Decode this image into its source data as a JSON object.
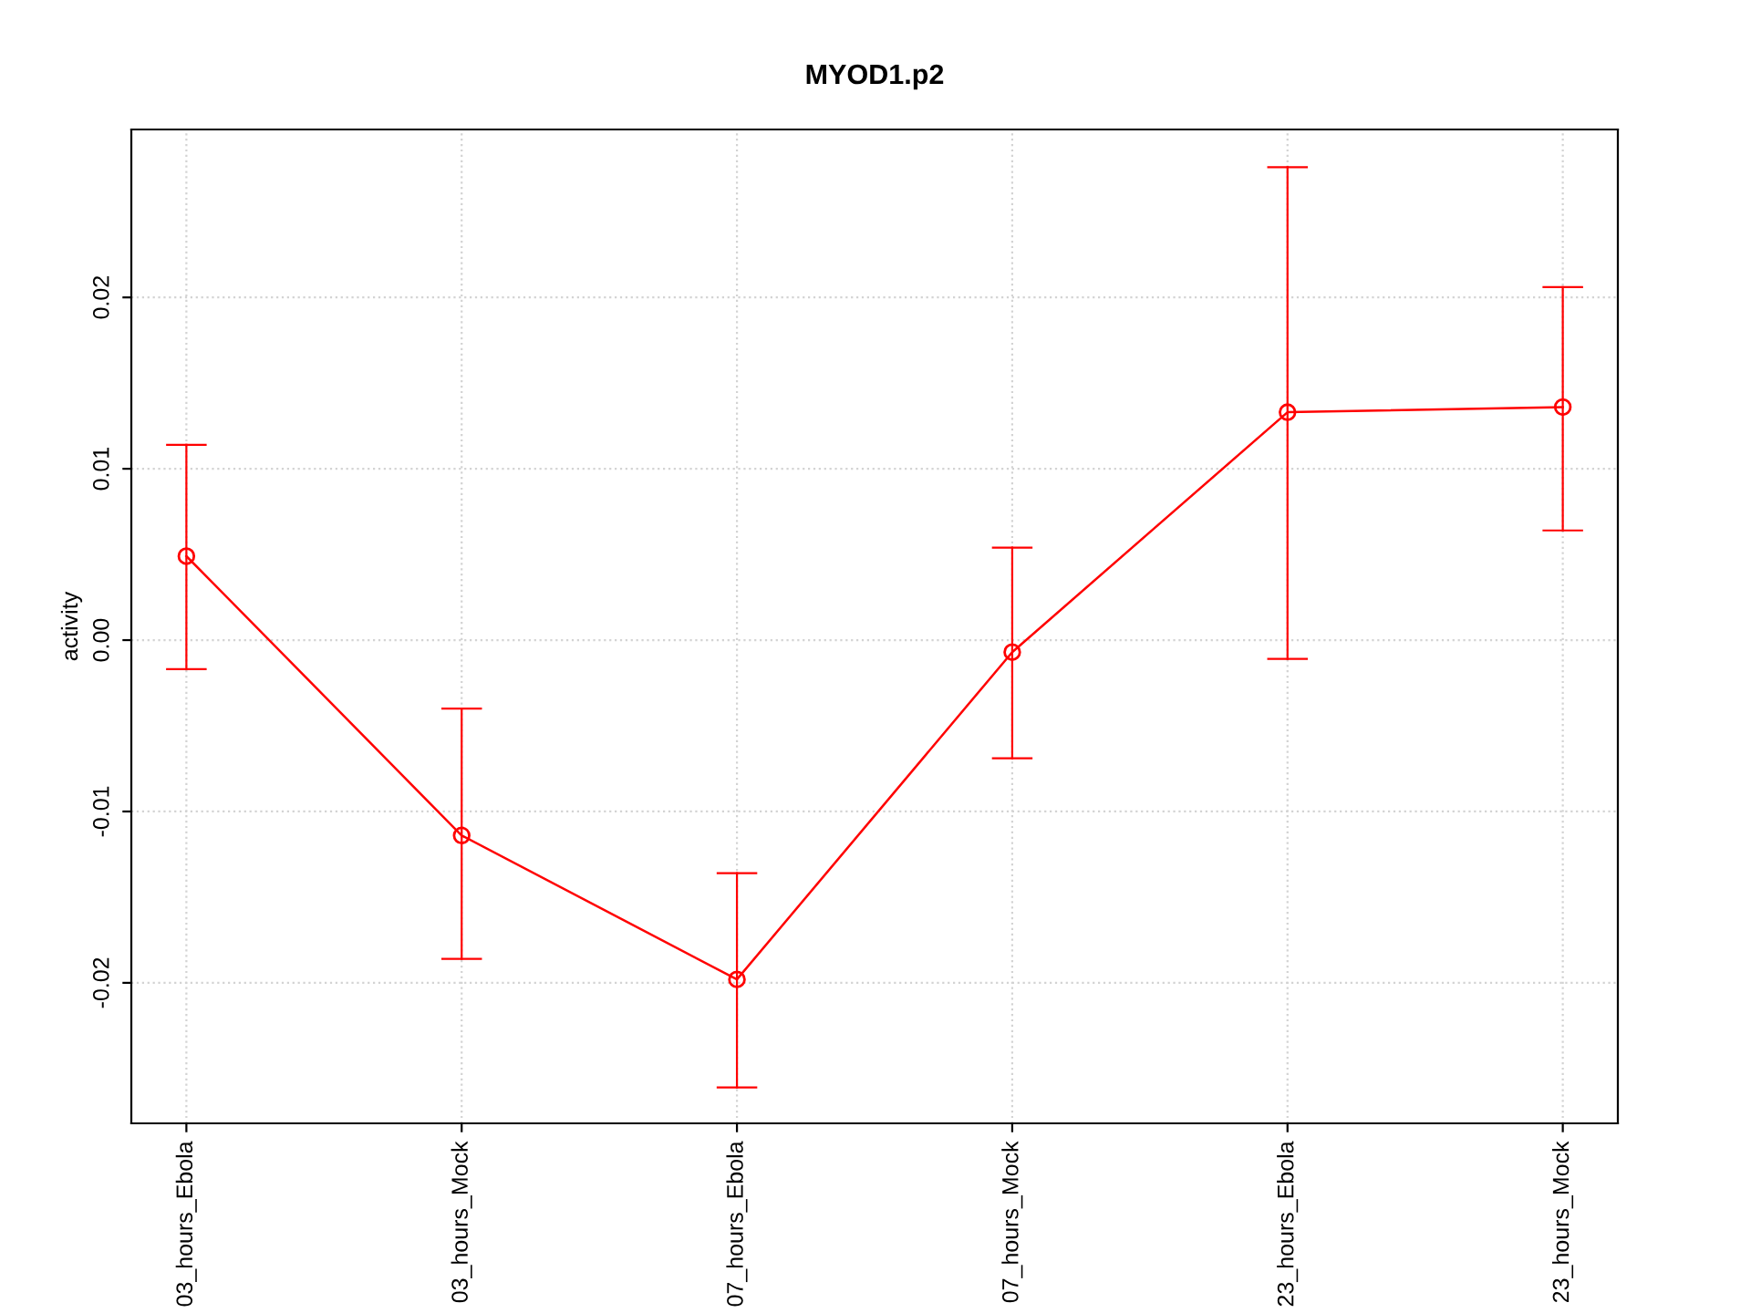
{
  "chart_data": {
    "type": "line",
    "title": "MYOD1.p2",
    "ylabel": "activity",
    "categories": [
      "03_hours_Ebola",
      "03_hours_Mock",
      "07_hours_Ebola",
      "07_hours_Mock",
      "23_hours_Ebola",
      "23_hours_Mock"
    ],
    "series": [
      {
        "color": "#ff0000",
        "values": [
          0.0049,
          -0.0114,
          -0.0198,
          -0.0007,
          0.0133,
          0.0136
        ],
        "errors": [
          [
            -0.0017,
            0.0114
          ],
          [
            -0.0186,
            -0.004
          ],
          [
            -0.0261,
            -0.0136
          ],
          [
            -0.0069,
            0.0054
          ],
          [
            -0.0011,
            0.0276
          ],
          [
            0.0064,
            0.0206
          ]
        ]
      }
    ],
    "ylim": [
      -0.0282,
      0.0298
    ],
    "yticks": [
      {
        "value": -0.02,
        "label": "-0.02"
      },
      {
        "value": -0.01,
        "label": "-0.01"
      },
      {
        "value": 0,
        "label": "0.00"
      },
      {
        "value": 0.01,
        "label": "0.01"
      },
      {
        "value": 0.02,
        "label": "0.02"
      }
    ],
    "grid": true,
    "marker": "circle",
    "line_style": "solid"
  }
}
